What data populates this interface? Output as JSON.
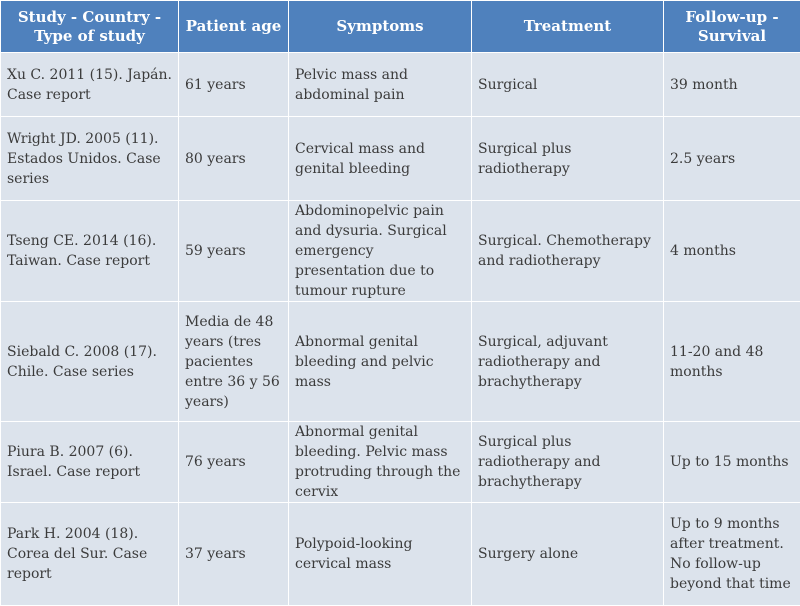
{
  "headers": [
    "Study - Country - Type of study",
    "Patient age",
    "Symptoms",
    "Treatment",
    "Follow-up - Survival"
  ],
  "rows": [
    [
      "Xu C. 2011 (15). Japán. Case report",
      "61 years",
      "Pelvic mass and abdominal pain",
      "Surgical",
      "39 month"
    ],
    [
      "Wright JD. 2005 (11). Estados Unidos. Case series",
      "80 years",
      "Cervical mass and genital bleeding",
      "Surgical plus radiotherapy",
      "2.5 years"
    ],
    [
      "Tseng CE. 2014 (16). Taiwan. Case report",
      "59 years",
      "Abdominopelvic pain and dysuria. Surgical emergency presentation due to tumour rupture",
      "Surgical. Chemotherapy and radiotherapy",
      "4 months"
    ],
    [
      "Siebald C. 2008 (17). Chile. Case series",
      "Media de 48 years (tres pacientes entre 36 y 56 years)",
      "Abnormal genital bleeding and pelvic mass",
      "Surgical, adjuvant radiotherapy and brachytherapy",
      "11-20 and 48 months"
    ],
    [
      "Piura B. 2007 (6). Israel. Case report",
      "76 years",
      "Abnormal genital bleeding. Pelvic mass protruding through the cervix",
      "Surgical plus radiotherapy and brachytherapy",
      "Up to 15 months"
    ],
    [
      "Park H. 2004 (18). Corea del Sur. Case report",
      "37 years",
      "Polypoid-looking cervical mass",
      "Surgery alone",
      "Up to 9 months after treatment. No follow-up beyond that time"
    ]
  ]
}
